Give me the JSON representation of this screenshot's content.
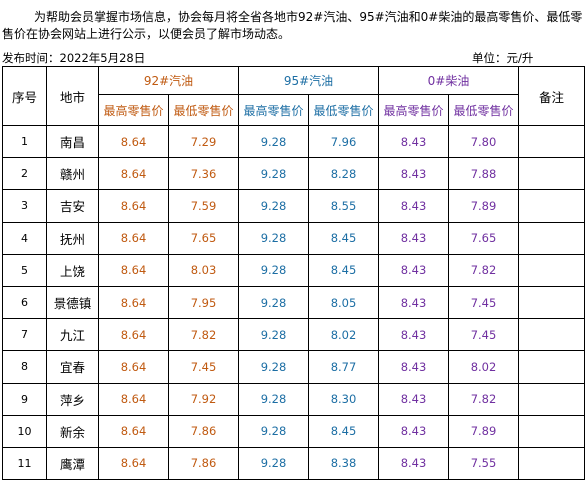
{
  "intro": "为帮助会员掌握市场信息，协会每月将全省各地市92#汽油、95#汽油和0#柴油的最高零售价、最低零售价在协会网站上进行公示，以便会员了解市场动态。",
  "publish": "发布时间：2022年5月28日",
  "unit": "单位：元/升",
  "headers": {
    "seq": "序号",
    "city": "地市",
    "note": "备注",
    "groups": [
      "92#汽油",
      "95#汽油",
      "0#柴油"
    ],
    "max": "最高零售价",
    "min": "最低零售价"
  },
  "colors": {
    "g92": "#c05a11",
    "g95": "#1c6ea4",
    "g0": "#7030a0"
  },
  "rows": [
    {
      "seq": "1",
      "city": "南昌",
      "p92max": "8.64",
      "p92min": "7.29",
      "p95max": "9.28",
      "p95min": "7.96",
      "p0max": "8.43",
      "p0min": "7.80",
      "note": ""
    },
    {
      "seq": "2",
      "city": "赣州",
      "p92max": "8.64",
      "p92min": "7.36",
      "p95max": "9.28",
      "p95min": "8.28",
      "p0max": "8.43",
      "p0min": "7.88",
      "note": ""
    },
    {
      "seq": "3",
      "city": "吉安",
      "p92max": "8.64",
      "p92min": "7.59",
      "p95max": "9.28",
      "p95min": "8.55",
      "p0max": "8.43",
      "p0min": "7.89",
      "note": ""
    },
    {
      "seq": "4",
      "city": "抚州",
      "p92max": "8.64",
      "p92min": "7.65",
      "p95max": "9.28",
      "p95min": "8.45",
      "p0max": "8.43",
      "p0min": "7.65",
      "note": ""
    },
    {
      "seq": "5",
      "city": "上饶",
      "p92max": "8.64",
      "p92min": "8.03",
      "p95max": "9.28",
      "p95min": "8.45",
      "p0max": "8.43",
      "p0min": "7.82",
      "note": ""
    },
    {
      "seq": "6",
      "city": "景德镇",
      "p92max": "8.64",
      "p92min": "7.95",
      "p95max": "9.28",
      "p95min": "8.05",
      "p0max": "8.43",
      "p0min": "7.45",
      "note": ""
    },
    {
      "seq": "7",
      "city": "九江",
      "p92max": "8.64",
      "p92min": "7.82",
      "p95max": "9.28",
      "p95min": "8.02",
      "p0max": "8.43",
      "p0min": "7.45",
      "note": ""
    },
    {
      "seq": "8",
      "city": "宜春",
      "p92max": "8.64",
      "p92min": "7.45",
      "p95max": "9.28",
      "p95min": "8.77",
      "p0max": "8.43",
      "p0min": "8.02",
      "note": ""
    },
    {
      "seq": "9",
      "city": "萍乡",
      "p92max": "8.64",
      "p92min": "7.92",
      "p95max": "9.28",
      "p95min": "8.30",
      "p0max": "8.43",
      "p0min": "7.82",
      "note": ""
    },
    {
      "seq": "10",
      "city": "新余",
      "p92max": "8.64",
      "p92min": "7.86",
      "p95max": "9.28",
      "p95min": "8.45",
      "p0max": "8.43",
      "p0min": "7.89",
      "note": ""
    },
    {
      "seq": "11",
      "city": "鹰潭",
      "p92max": "8.64",
      "p92min": "7.86",
      "p95max": "9.28",
      "p95min": "8.38",
      "p0max": "8.43",
      "p0min": "7.55",
      "note": ""
    }
  ]
}
